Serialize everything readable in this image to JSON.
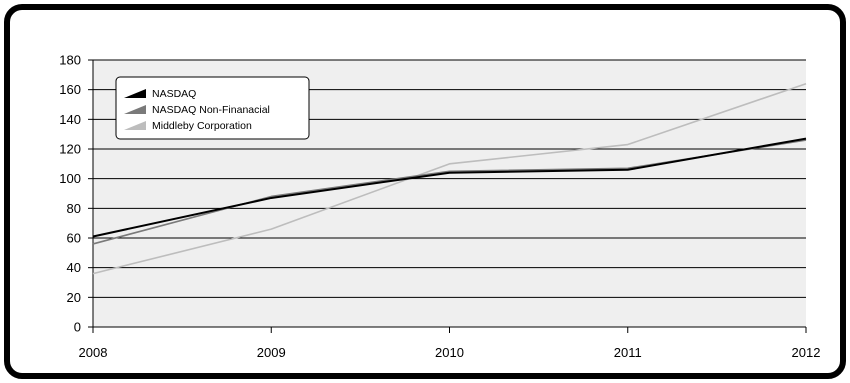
{
  "chart_data": {
    "type": "line",
    "title": "",
    "xlabel": "",
    "ylabel": "",
    "x": [
      "2008",
      "2009",
      "2010",
      "2011",
      "2012"
    ],
    "ylim": [
      0,
      180
    ],
    "yticks": [
      0,
      20,
      40,
      60,
      80,
      100,
      120,
      140,
      160,
      180
    ],
    "grid": true,
    "legend": "top-left",
    "series": [
      {
        "name": "NASDAQ",
        "values": [
          61,
          87,
          104,
          106,
          127
        ],
        "color": "#000000"
      },
      {
        "name": "NASDAQ Non-Finanacial",
        "values": [
          56,
          88,
          105,
          107,
          126
        ],
        "color": "#7a7a7a"
      },
      {
        "name": "Middleby Corporation",
        "values": [
          36,
          66,
          110,
          123,
          164
        ],
        "color": "#bdbdbd"
      }
    ],
    "plot_background": "#efefef"
  }
}
